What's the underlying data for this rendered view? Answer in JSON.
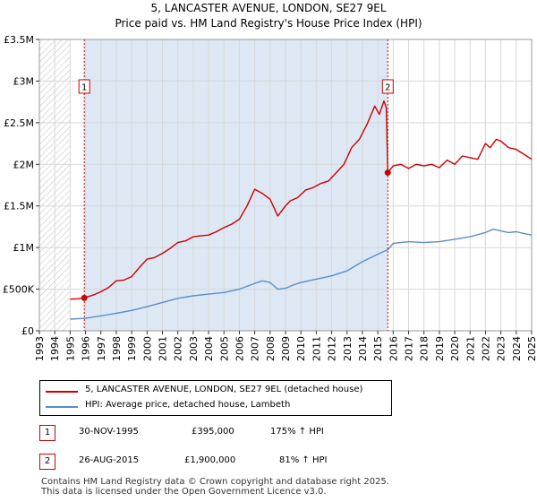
{
  "header": {
    "title": "5, LANCASTER AVENUE, LONDON, SE27 9EL",
    "subtitle": "Price paid vs. HM Land Registry's House Price Index (HPI)"
  },
  "colors": {
    "property_line": "#cc0000",
    "hpi_line": "#5b8ec9",
    "highlight_band": "#dde8f4",
    "marker_box": "#cc0000"
  },
  "chart_data": {
    "type": "line",
    "title": "5, LANCASTER AVENUE, LONDON, SE27 9EL",
    "subtitle": "Price paid vs. HM Land Registry's House Price Index (HPI)",
    "xlabel": "",
    "ylabel": "",
    "xlim": [
      1993,
      2025
    ],
    "ylim": [
      0,
      3500000
    ],
    "x_ticks": [
      1993,
      1994,
      1995,
      1996,
      1997,
      1998,
      1999,
      2000,
      2001,
      2002,
      2003,
      2004,
      2005,
      2006,
      2007,
      2008,
      2009,
      2010,
      2011,
      2012,
      2013,
      2014,
      2015,
      2016,
      2017,
      2018,
      2019,
      2020,
      2021,
      2022,
      2023,
      2024,
      2025
    ],
    "x_tick_labels": [
      "1993",
      "1994",
      "1995",
      "1996",
      "1997",
      "1998",
      "1999",
      "2000",
      "2001",
      "2002",
      "2003",
      "2004",
      "2005",
      "2006",
      "2007",
      "2008",
      "2009",
      "2010",
      "2011",
      "2012",
      "2013",
      "2014",
      "2015",
      "2016",
      "2017",
      "2018",
      "2019",
      "2020",
      "2021",
      "2022",
      "2023",
      "2024",
      "2025"
    ],
    "y_ticks": [
      0,
      500000,
      1000000,
      1500000,
      2000000,
      2500000,
      3000000,
      3500000
    ],
    "y_tick_labels": [
      "£0",
      "£500K",
      "£1M",
      "£1.5M",
      "£2M",
      "£2.5M",
      "£3M",
      "£3.5M"
    ],
    "grid": true,
    "hatched_range": [
      1993,
      1995
    ],
    "shaded_range": [
      1995.92,
      2015.65
    ],
    "series": [
      {
        "name": "5, LANCASTER AVENUE, LONDON, SE27 9EL (detached house)",
        "color": "#cc0000",
        "x": [
          1995.0,
          1995.5,
          1995.92,
          1996.5,
          1997.0,
          1997.5,
          1998.0,
          1998.5,
          1999.0,
          1999.5,
          2000.0,
          2000.5,
          2001.0,
          2001.5,
          2002.0,
          2002.5,
          2003.0,
          2003.5,
          2004.0,
          2004.5,
          2005.0,
          2005.5,
          2006.0,
          2006.5,
          2007.0,
          2007.5,
          2008.0,
          2008.5,
          2009.0,
          2009.3,
          2009.8,
          2010.3,
          2010.8,
          2011.3,
          2011.8,
          2012.3,
          2012.8,
          2013.3,
          2013.8,
          2014.3,
          2014.8,
          2015.1,
          2015.4,
          2015.55,
          2015.65,
          2016.0,
          2016.5,
          2017.0,
          2017.5,
          2018.0,
          2018.5,
          2019.0,
          2019.5,
          2020.0,
          2020.5,
          2021.0,
          2021.5,
          2022.0,
          2022.3,
          2022.7,
          2023.0,
          2023.5,
          2024.0,
          2024.5,
          2025.0
        ],
        "values": [
          380000,
          385000,
          395000,
          430000,
          470000,
          520000,
          600000,
          610000,
          650000,
          760000,
          860000,
          880000,
          930000,
          990000,
          1060000,
          1080000,
          1130000,
          1140000,
          1150000,
          1190000,
          1240000,
          1280000,
          1340000,
          1500000,
          1700000,
          1650000,
          1580000,
          1380000,
          1500000,
          1560000,
          1600000,
          1690000,
          1720000,
          1770000,
          1800000,
          1900000,
          2000000,
          2200000,
          2300000,
          2480000,
          2700000,
          2600000,
          2760000,
          2680000,
          1900000,
          1980000,
          2000000,
          1950000,
          2000000,
          1980000,
          2000000,
          1960000,
          2050000,
          2000000,
          2100000,
          2080000,
          2060000,
          2250000,
          2200000,
          2300000,
          2280000,
          2200000,
          2180000,
          2120000,
          2060000
        ]
      },
      {
        "name": "HPI: Average price, detached house, Lambeth",
        "color": "#5b8ec9",
        "x": [
          1995.0,
          1996.0,
          1997.0,
          1998.0,
          1999.0,
          2000.0,
          2001.0,
          2002.0,
          2003.0,
          2004.0,
          2005.0,
          2006.0,
          2007.0,
          2007.5,
          2008.0,
          2008.5,
          2009.0,
          2009.5,
          2010.0,
          2011.0,
          2012.0,
          2013.0,
          2014.0,
          2015.0,
          2015.65,
          2016.0,
          2016.5,
          2017.0,
          2018.0,
          2019.0,
          2020.0,
          2021.0,
          2022.0,
          2022.5,
          2023.0,
          2023.5,
          2024.0,
          2024.5,
          2025.0
        ],
        "values": [
          140000,
          150000,
          180000,
          210000,
          245000,
          290000,
          340000,
          390000,
          420000,
          440000,
          460000,
          500000,
          570000,
          600000,
          580000,
          500000,
          510000,
          550000,
          580000,
          620000,
          660000,
          720000,
          830000,
          920000,
          975000,
          1050000,
          1060000,
          1070000,
          1060000,
          1070000,
          1100000,
          1130000,
          1180000,
          1220000,
          1200000,
          1180000,
          1190000,
          1170000,
          1150000
        ]
      }
    ],
    "sales": [
      {
        "id": "1",
        "x": 1995.92,
        "value": 395000,
        "date": "30-NOV-1995",
        "price": "£395,000",
        "hpi": "175% ↑ HPI"
      },
      {
        "id": "2",
        "x": 2015.65,
        "value": 1900000,
        "date": "26-AUG-2015",
        "price": "£1,900,000",
        "hpi": "81% ↑ HPI"
      }
    ]
  },
  "legend": {
    "items": [
      {
        "label": "5, LANCASTER AVENUE, LONDON, SE27 9EL (detached house)",
        "color": "#cc0000"
      },
      {
        "label": "HPI: Average price, detached house, Lambeth",
        "color": "#5b8ec9"
      }
    ]
  },
  "sales_table": [
    {
      "id": "1",
      "date": "30-NOV-1995",
      "price": "£395,000",
      "hpi": "175% ↑ HPI"
    },
    {
      "id": "2",
      "date": "26-AUG-2015",
      "price": "£1,900,000",
      "hpi": "81% ↑ HPI"
    }
  ],
  "footer": {
    "line1": "Contains HM Land Registry data © Crown copyright and database right 2025.",
    "line2": "This data is licensed under the Open Government Licence v3.0."
  }
}
